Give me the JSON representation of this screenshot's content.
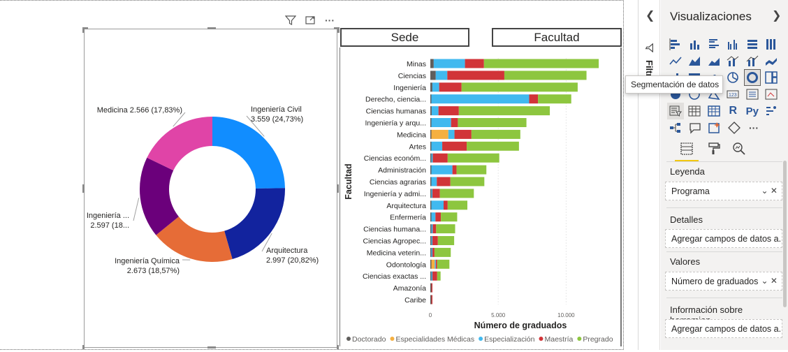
{
  "visual_header": {
    "filter_icon": "filter-icon",
    "focus_icon": "focus-mode-icon",
    "more_icon": "more-options-icon"
  },
  "donut": {
    "slices": [
      {
        "name": "Ingeniería Civil",
        "value": 3559,
        "label_name": "Ingeniería Civil",
        "label_value": "3.559 (24,73%)",
        "color": "#118DFF"
      },
      {
        "name": "Arquitectura",
        "value": 2997,
        "label_name": "Arquitectura",
        "label_value": "2.997 (20,82%)",
        "color": "#12239E"
      },
      {
        "name": "Ingeniería Química",
        "value": 2673,
        "label_name": "Ingeniería Química",
        "label_value": "2.673 (18,57%)",
        "color": "#E66C37"
      },
      {
        "name": "Ingeniería ...",
        "value": 2597,
        "label_name": "Ingeniería ...",
        "label_value": "2.597 (18...",
        "color": "#6B007B"
      },
      {
        "name": "Medicina",
        "value": 2566,
        "label_name": "Medicina 2.566 (17,83%)",
        "label_value": "",
        "color": "#E044A7"
      }
    ]
  },
  "slicers": {
    "sede": "Sede",
    "facultad": "Facultad"
  },
  "chart_data": {
    "type": "bar",
    "orientation": "horizontal",
    "stacked": true,
    "ylabel": "Facultad",
    "xlabel": "Número de graduados",
    "x_ticks": [
      "0",
      "5.000",
      "10.000"
    ],
    "xlim": [
      0,
      12500
    ],
    "categories": [
      "Minas",
      "Ciencias",
      "Ingeniería",
      "Derecho, ciencia...",
      "Ciencias humanas",
      "Ingeniería y arqu...",
      "Medicina",
      "Artes",
      "Ciencias económ...",
      "Administración",
      "Ciencias agrarias",
      "Ingeniería y admi...",
      "Arquitectura",
      "Enfermería",
      "Ciencias humana...",
      "Ciencias Agropec...",
      "Medicina veterin...",
      "Odontología",
      "Ciencias exactas ...",
      "Amazonía",
      "Caribe"
    ],
    "series": [
      {
        "name": "Doctorado",
        "color": "#605E5C",
        "values": [
          250,
          400,
          150,
          50,
          100,
          50,
          50,
          50,
          50,
          50,
          50,
          50,
          50,
          50,
          50,
          50,
          50,
          50,
          50,
          20,
          10
        ]
      },
      {
        "name": "Especialidades Médicas",
        "color": "#F5B041",
        "values": [
          0,
          0,
          0,
          0,
          0,
          0,
          1250,
          0,
          0,
          0,
          0,
          0,
          0,
          0,
          0,
          0,
          0,
          250,
          0,
          0,
          0
        ]
      },
      {
        "name": "Especialización",
        "color": "#41B9EF",
        "values": [
          2300,
          850,
          500,
          7200,
          500,
          1450,
          450,
          800,
          100,
          1550,
          400,
          50,
          900,
          300,
          100,
          50,
          50,
          50,
          50,
          0,
          0
        ]
      },
      {
        "name": "Maestría",
        "color": "#D13438",
        "values": [
          1400,
          4200,
          1650,
          650,
          1500,
          500,
          1250,
          1800,
          1100,
          300,
          1000,
          550,
          300,
          400,
          250,
          400,
          150,
          100,
          350,
          50,
          30
        ]
      },
      {
        "name": "Pregrado",
        "color": "#8DC63F",
        "values": [
          8450,
          6050,
          8550,
          2450,
          6700,
          5050,
          3600,
          3850,
          3800,
          2200,
          2500,
          2500,
          1450,
          1200,
          1400,
          1200,
          1200,
          900,
          250,
          0,
          0
        ]
      }
    ],
    "legend_position": "bottom"
  },
  "filters_pane": {
    "label": "Filtros",
    "toggle": "chevron-left-icon"
  },
  "viz_pane": {
    "title": "Visualizaciones",
    "tooltip": "Segmentación de datos",
    "sections": {
      "leyenda": "Leyenda",
      "leyenda_value": "Programa",
      "detalles": "Detalles",
      "detalles_value": "Agregar campos de datos a...",
      "valores": "Valores",
      "valores_value": "Número de graduados",
      "info": "Información sobre herramien...",
      "info_value": "Agregar campos de datos a..."
    },
    "r_icon": "R",
    "py_icon": "Py",
    "more_icon": "···",
    "table_icon_123": "123"
  }
}
